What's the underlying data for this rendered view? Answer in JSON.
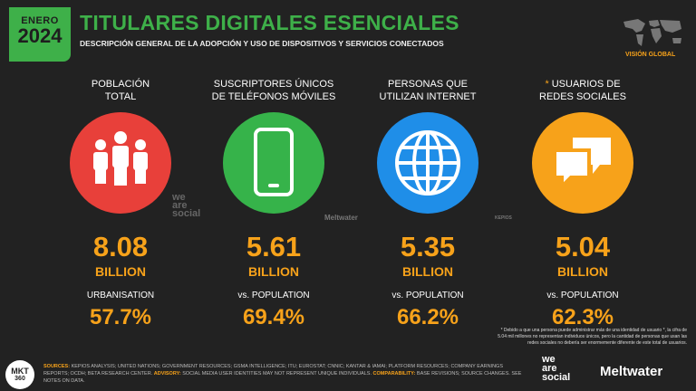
{
  "header": {
    "month": "ENERO",
    "year": "2024",
    "title": "TITULARES DIGITALES ESENCIALES",
    "subtitle": "DESCRIPCIÓN GENERAL DE LA ADOPCIÓN Y USO DE DISPOSITIVOS Y SERVICIOS CONECTADOS",
    "map_label": "VISIÓN GLOBAL"
  },
  "cards": [
    {
      "label": [
        "POBLACIÓN",
        "TOTAL"
      ],
      "value": "8.08",
      "unit": "BILLION",
      "sublabel": "URBANISATION",
      "percent": "57.7%"
    },
    {
      "label": [
        "SUSCRIPTORES ÚNICOS",
        "DE TELÉFONOS MÓVILES"
      ],
      "value": "5.61",
      "unit": "BILLION",
      "sublabel": "vs. POPULATION",
      "percent": "69.4%"
    },
    {
      "label": [
        "PERSONAS QUE",
        "UTILIZAN INTERNET"
      ],
      "value": "5.35",
      "unit": "BILLION",
      "sublabel": "vs. POPULATION",
      "percent": "66.2%"
    },
    {
      "marker": "*",
      "label": [
        "USUARIOS DE",
        "REDES SOCIALES"
      ],
      "value": "5.04",
      "unit": "BILLION",
      "sublabel": "vs. POPULATION",
      "percent": "62.3%"
    }
  ],
  "footnote": "* Debido a que una persona puede administrar más de una identidad de usuario *, la cifra de 5.04 mil millones no representan individuos únicos, pero la cantidad de personas que usan las redes sociales no debería ser enormemente diferente de este total de usuarios.",
  "sources": {
    "sources_label": "SOURCES:",
    "sources_text": "KEPIOS ANALYSIS; UNITED NATIONS; GOVERNMENT RESOURCES; GSMA INTELLIGENCE; ITU; EUROSTAT; CNNIC; KANTAR & IAMAI; PLATFORM RESOURCES; COMPANY EARNINGS REPORTS; OCDH; BETA RESEARCH CENTER.",
    "advisory_label": "ADVISORY:",
    "advisory_text": "SOCIAL MEDIA USER IDENTITIES MAY NOT REPRESENT UNIQUE INDIVIDUALS.",
    "comparability_label": "COMPARABILITY:",
    "comparability_text": "BASE REVISIONS; SOURCE CHANGES. SEE NOTES ON DATA."
  },
  "logos": {
    "we": "we",
    "are": "are",
    "social": "social",
    "meltwater": "Meltwater",
    "kepios": "KEPIOS",
    "mkt": "MKT",
    "mkt_num": "360"
  }
}
